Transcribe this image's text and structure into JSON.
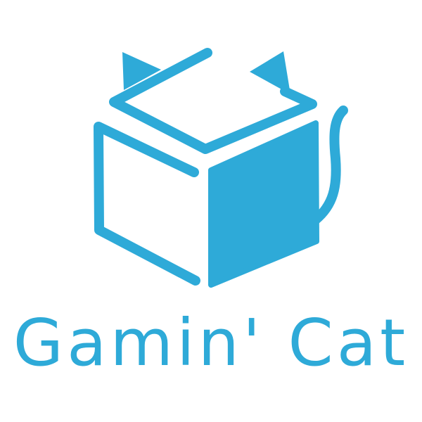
{
  "brand": {
    "name": "Gamin' Cat",
    "color": "#2EAAD8",
    "icon": "box-cat-icon"
  }
}
